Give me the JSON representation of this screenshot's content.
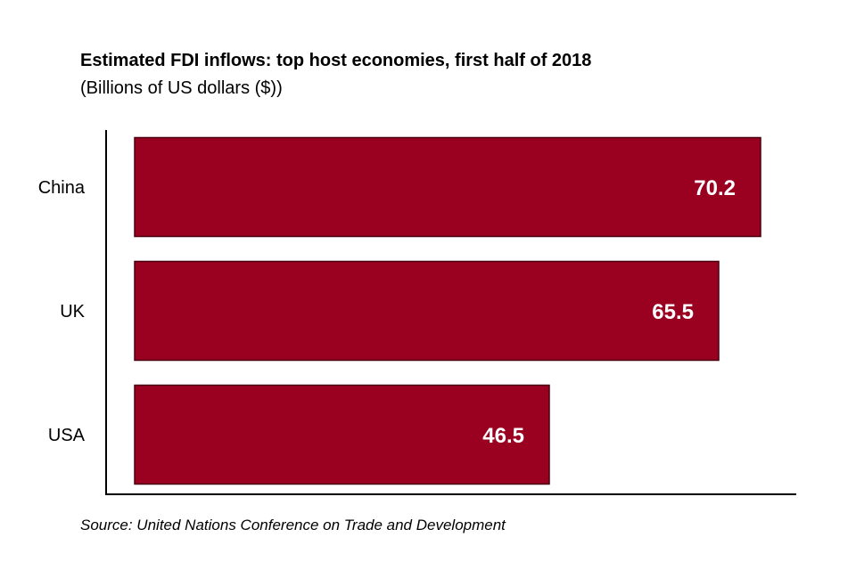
{
  "header": {
    "title": "Estimated FDI inflows: top host economies, first half of 2018",
    "subtitle": "(Billions of US dollars ($))"
  },
  "footer": {
    "source": "Source: United Nations Conference on Trade and Development"
  },
  "colors": {
    "bar_fill": "#9a0020",
    "bar_stroke": "#4a0010",
    "axis": "#000000"
  },
  "chart_data": {
    "type": "bar",
    "orientation": "horizontal",
    "title": "Estimated FDI inflows: top host economies, first half of 2018",
    "subtitle": "(Billions of US dollars ($))",
    "categories": [
      "China",
      "UK",
      "USA"
    ],
    "values": [
      70.2,
      65.5,
      46.5
    ],
    "value_labels": [
      "70.2",
      "65.5",
      "46.5"
    ],
    "xlabel": "",
    "ylabel": "",
    "xlim": [
      0,
      75
    ],
    "grid": false,
    "legend": "none"
  }
}
